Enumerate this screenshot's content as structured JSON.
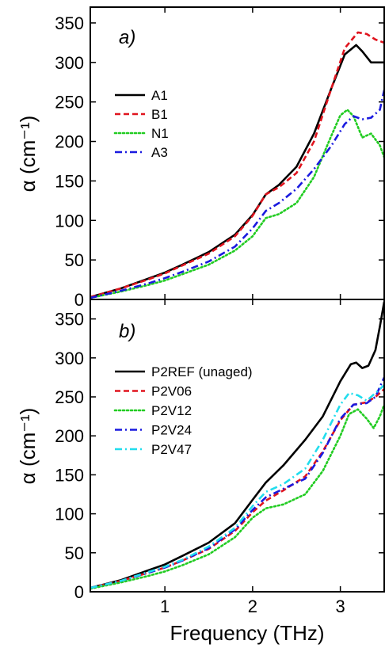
{
  "chart_data": [
    {
      "type": "line",
      "panel_label": "a)",
      "xlim": [
        0.15,
        3.5
      ],
      "ylim": [
        0,
        370
      ],
      "xticks": [
        1,
        2,
        3
      ],
      "yticks": [
        0,
        50,
        100,
        150,
        200,
        250,
        300,
        350
      ],
      "xlabel": "",
      "ylabel": "α (cm⁻¹)",
      "legend_position": "left",
      "series": [
        {
          "name": "A1",
          "color": "#000000",
          "dash": "solid",
          "x": [
            0.15,
            0.5,
            0.8,
            1.0,
            1.2,
            1.5,
            1.8,
            2.0,
            2.15,
            2.3,
            2.5,
            2.7,
            2.9,
            3.05,
            3.18,
            3.25,
            3.35,
            3.45,
            3.5
          ],
          "y": [
            3,
            14,
            26,
            34,
            44,
            60,
            82,
            107,
            133,
            145,
            168,
            210,
            268,
            310,
            322,
            314,
            300,
            300,
            300
          ]
        },
        {
          "name": "B1",
          "color": "#e0141e",
          "dash": "dashed",
          "x": [
            0.15,
            0.5,
            0.8,
            1.0,
            1.2,
            1.5,
            1.8,
            2.0,
            2.15,
            2.3,
            2.5,
            2.7,
            2.9,
            3.05,
            3.2,
            3.3,
            3.4,
            3.5
          ],
          "y": [
            3,
            14,
            25,
            33,
            43,
            58,
            80,
            106,
            133,
            142,
            160,
            200,
            268,
            318,
            338,
            336,
            329,
            325
          ]
        },
        {
          "name": "N1",
          "color": "#22cc22",
          "dash": "dotted",
          "x": [
            0.15,
            0.5,
            0.8,
            1.0,
            1.2,
            1.5,
            1.8,
            2.0,
            2.15,
            2.3,
            2.5,
            2.7,
            2.9,
            3.0,
            3.08,
            3.15,
            3.25,
            3.35,
            3.45,
            3.5
          ],
          "y": [
            2,
            10,
            18,
            24,
            32,
            44,
            62,
            80,
            103,
            108,
            122,
            155,
            208,
            233,
            240,
            232,
            205,
            210,
            195,
            180
          ]
        },
        {
          "name": "A3",
          "color": "#1a1adf",
          "dash": "dashdot",
          "x": [
            0.15,
            0.5,
            0.8,
            1.0,
            1.2,
            1.5,
            1.8,
            2.0,
            2.15,
            2.3,
            2.5,
            2.7,
            2.9,
            3.05,
            3.15,
            3.25,
            3.35,
            3.45,
            3.5
          ],
          "y": [
            2,
            11,
            20,
            27,
            35,
            48,
            67,
            90,
            112,
            122,
            140,
            165,
            195,
            222,
            232,
            228,
            230,
            240,
            265
          ]
        }
      ]
    },
    {
      "type": "line",
      "panel_label": "b)",
      "xlim": [
        0.15,
        3.5
      ],
      "ylim": [
        0,
        375
      ],
      "xticks": [
        1,
        2,
        3
      ],
      "yticks": [
        0,
        50,
        100,
        150,
        200,
        250,
        300,
        350
      ],
      "xtick_labels": [
        "1",
        "2",
        "3"
      ],
      "xlabel": "Frequency (THz)",
      "ylabel": "α (cm⁻¹)",
      "legend_position": "right",
      "series": [
        {
          "name": "P2REF (unaged)",
          "color": "#000000",
          "dash": "solid",
          "x": [
            0.15,
            0.5,
            0.8,
            1.0,
            1.2,
            1.5,
            1.8,
            2.0,
            2.15,
            2.35,
            2.6,
            2.8,
            3.0,
            3.12,
            3.18,
            3.25,
            3.32,
            3.4,
            3.45,
            3.5
          ],
          "y": [
            5,
            15,
            27,
            35,
            46,
            63,
            88,
            118,
            140,
            162,
            195,
            225,
            270,
            292,
            294,
            287,
            290,
            310,
            340,
            372
          ]
        },
        {
          "name": "P2V06",
          "color": "#e0141e",
          "dash": "dashed",
          "x": [
            0.15,
            0.5,
            0.8,
            1.0,
            1.2,
            1.5,
            1.8,
            2.0,
            2.15,
            2.35,
            2.6,
            2.8,
            3.0,
            3.15,
            3.3,
            3.4,
            3.5
          ],
          "y": [
            5,
            14,
            24,
            31,
            40,
            55,
            78,
            102,
            117,
            130,
            148,
            180,
            220,
            240,
            243,
            250,
            260
          ]
        },
        {
          "name": "P2V12",
          "color": "#22cc22",
          "dash": "dotted",
          "x": [
            0.15,
            0.5,
            0.8,
            1.0,
            1.2,
            1.5,
            1.8,
            2.0,
            2.15,
            2.35,
            2.6,
            2.8,
            3.0,
            3.1,
            3.2,
            3.3,
            3.38,
            3.45,
            3.5
          ],
          "y": [
            4,
            12,
            20,
            26,
            34,
            48,
            70,
            95,
            107,
            112,
            125,
            155,
            200,
            228,
            234,
            222,
            210,
            225,
            240
          ]
        },
        {
          "name": "P2V24",
          "color": "#1a1adf",
          "dash": "dashdot",
          "x": [
            0.15,
            0.5,
            0.8,
            1.0,
            1.2,
            1.5,
            1.8,
            2.0,
            2.15,
            2.35,
            2.6,
            2.8,
            3.0,
            3.15,
            3.3,
            3.4,
            3.5
          ],
          "y": [
            5,
            14,
            24,
            31,
            40,
            56,
            80,
            105,
            121,
            132,
            145,
            178,
            222,
            240,
            242,
            250,
            275
          ]
        },
        {
          "name": "P2V47",
          "color": "#22dded",
          "dash": "dashdot",
          "x": [
            0.15,
            0.5,
            0.8,
            1.0,
            1.2,
            1.5,
            1.8,
            2.0,
            2.15,
            2.35,
            2.6,
            2.8,
            3.0,
            3.1,
            3.2,
            3.3,
            3.4,
            3.5
          ],
          "y": [
            5,
            14,
            25,
            32,
            41,
            58,
            82,
            110,
            128,
            138,
            158,
            195,
            240,
            255,
            252,
            245,
            255,
            265
          ]
        }
      ]
    }
  ]
}
